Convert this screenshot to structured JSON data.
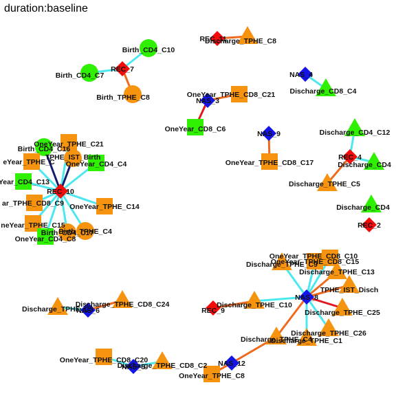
{
  "title": "duration:baseline",
  "colors": {
    "orange": "#f7940f",
    "green": "#2ef000",
    "red": "#f20c0c",
    "blue": "#1414e6",
    "edge_cyan": "#4ce8ef",
    "edge_orange": "#ee6a1e",
    "edge_navy": "#131d6e",
    "edge_red": "#e2181e"
  },
  "nodes": [
    {
      "id": "REC_7",
      "label": "REC_7",
      "shape": "diamond",
      "color": "red"
    },
    {
      "id": "Birth_CD4_C10",
      "label": "Birth_CD4_C10",
      "shape": "circle",
      "color": "green"
    },
    {
      "id": "Birth_CD4_C7",
      "label": "Birth_CD4_C7",
      "shape": "circle",
      "color": "green"
    },
    {
      "id": "Birth_TPHE_C8",
      "label": "Birth_TPHE_C8",
      "shape": "circle",
      "color": "orange"
    },
    {
      "id": "REC_11",
      "label": "REC_11",
      "shape": "diamond",
      "color": "red"
    },
    {
      "id": "Discharge_TPHE_C8",
      "label": "Discharge_TPHE_C8",
      "shape": "triangle",
      "color": "orange"
    },
    {
      "id": "NAS_4",
      "label": "NAS_4",
      "shape": "diamond",
      "color": "blue"
    },
    {
      "id": "Discharge_CD8_C4",
      "label": "Discharge_CD8_C4",
      "shape": "triangle",
      "color": "green"
    },
    {
      "id": "NAS_3",
      "label": "NAS_3",
      "shape": "diamond",
      "color": "blue"
    },
    {
      "id": "OneYear_TPHE_CD8_C21",
      "label": "OneYear_TPHE_CD8_C21",
      "shape": "square",
      "color": "orange"
    },
    {
      "id": "OneYear_CD8_C6",
      "label": "OneYear_CD8_C6",
      "shape": "square",
      "color": "green"
    },
    {
      "id": "NAS_9",
      "label": "NAS_9",
      "shape": "diamond",
      "color": "blue"
    },
    {
      "id": "OneYear_TPHE_CD8_C17",
      "label": "OneYear_TPHE_CD8_C17",
      "shape": "square",
      "color": "orange"
    },
    {
      "id": "REC_4",
      "label": "REC_4",
      "shape": "diamond",
      "color": "red"
    },
    {
      "id": "Discharge_CD4_C12",
      "label": "Discharge_CD4_C12",
      "shape": "triangle",
      "color": "green"
    },
    {
      "id": "Discharge_CD4_b",
      "label": "Discharge_CD4",
      "shape": "triangle",
      "color": "green"
    },
    {
      "id": "Discharge_TPHE_C5",
      "label": "Discharge_TPHE_C5",
      "shape": "triangle",
      "color": "orange"
    },
    {
      "id": "Discharge_CD4_c",
      "label": "Discharge_CD4",
      "shape": "triangle",
      "color": "green"
    },
    {
      "id": "REC_2",
      "label": "REC_2",
      "shape": "diamond",
      "color": "red"
    },
    {
      "id": "REC_10",
      "label": "REC_10",
      "shape": "diamond",
      "color": "red"
    },
    {
      "id": "Birth_CD4_C16",
      "label": "Birth_CD4_C16",
      "shape": "circle",
      "color": "green"
    },
    {
      "id": "OneYear_TPHE_C21",
      "label": "OneYear_TPHE_C21",
      "shape": "square",
      "color": "orange"
    },
    {
      "id": "TPHE_IST_Birth",
      "label": "TPHE_IST_Birth",
      "shape": "circle",
      "color": "orange"
    },
    {
      "id": "OneYear_TPHE_trunc",
      "label": "eYear_TPHE_C",
      "shape": "square",
      "color": "orange"
    },
    {
      "id": "OneYear_CD4_C4",
      "label": "OneYear_CD4_C4",
      "shape": "square",
      "color": "green"
    },
    {
      "id": "OneYear_CD4_C13",
      "label": "eYear_CD4_C13",
      "shape": "square",
      "color": "green"
    },
    {
      "id": "OneYear_TPHE_CD8_C9",
      "label": "ar_TPHE_CD8_C9",
      "shape": "square",
      "color": "orange"
    },
    {
      "id": "OneYear_TPHE_C14",
      "label": "OneYear_TPHE_C14",
      "shape": "square",
      "color": "orange"
    },
    {
      "id": "OneYear_TPHE_C15",
      "label": "neYear_TPHE_C15",
      "shape": "square",
      "color": "orange"
    },
    {
      "id": "Birth_TPHE_C4",
      "label": "Birth_TPHE_C4",
      "shape": "circle",
      "color": "orange"
    },
    {
      "id": "OneYear_CD4_C8",
      "label": "OneYear_CD4_C8",
      "shape": "square",
      "color": "green"
    },
    {
      "id": "Birth_CD4_C17",
      "label": "Birth_CD4_C17",
      "shape": "circle",
      "color": "orange"
    },
    {
      "id": "NAS_8",
      "label": "NAS_8",
      "shape": "diamond",
      "color": "blue"
    },
    {
      "id": "OneYear_TPHE_CD8_C10",
      "label": "OneYear_TPHE_CD8_C10",
      "shape": "square",
      "color": "orange"
    },
    {
      "id": "Discharge_TPHE_C9",
      "label": "Discharge_TPHE_C9",
      "shape": "triangle",
      "color": "orange"
    },
    {
      "id": "OneYear_TPHE_CD8_C15",
      "label": "OneYear_TPHE_CD8_C15",
      "shape": "square",
      "color": "orange"
    },
    {
      "id": "Discharge_TPHE_C13",
      "label": "Discharge_TPHE_C13",
      "shape": "triangle",
      "color": "orange"
    },
    {
      "id": "TPHE_IST_Disch",
      "label": "TPHE_IST_Disch",
      "shape": "triangle",
      "color": "orange"
    },
    {
      "id": "Discharge_TPHE_C25",
      "label": "Discharge_TPHE_C25",
      "shape": "triangle",
      "color": "orange"
    },
    {
      "id": "Discharge_TPHE_C26",
      "label": "Discharge_TPHE_C26",
      "shape": "triangle",
      "color": "orange"
    },
    {
      "id": "Discharge_TPHE_C4",
      "label": "Discharge_TPHE_C4",
      "shape": "triangle",
      "color": "orange"
    },
    {
      "id": "Discharge_TPHE_C1",
      "label": "Discharge_TPHE_C1",
      "shape": "triangle",
      "color": "orange"
    },
    {
      "id": "Discharge_TPHE_C10",
      "label": "Discharge_TPHE_C10",
      "shape": "triangle",
      "color": "orange"
    },
    {
      "id": "REC_9",
      "label": "REC_9",
      "shape": "diamond",
      "color": "red"
    },
    {
      "id": "NAS_6",
      "label": "NAS_6",
      "shape": "diamond",
      "color": "blue"
    },
    {
      "id": "Discharge_TPHE_C3",
      "label": "Discharge_TPHE_C3",
      "shape": "triangle",
      "color": "orange"
    },
    {
      "id": "Discharge_TPHE_CD8_C24",
      "label": "Discharge_TPHE_CD8_C24",
      "shape": "triangle",
      "color": "orange"
    },
    {
      "id": "NAS_12",
      "label": "NAS_12",
      "shape": "diamond",
      "color": "blue"
    },
    {
      "id": "OneYear_TPHE_C8",
      "label": "OneYear_TPHE_C8",
      "shape": "square",
      "color": "orange"
    },
    {
      "id": "Discharge_TPHE_CD8_C2",
      "label": "Discharge_TPHE_CD8_C2",
      "shape": "triangle",
      "color": "orange"
    },
    {
      "id": "NAS_5",
      "label": "NAS_5",
      "shape": "diamond",
      "color": "blue"
    },
    {
      "id": "OneYear_TPHE_CD8_C20",
      "label": "OneYear_TPHE_CD8_C20",
      "shape": "square",
      "color": "orange"
    }
  ],
  "edges": [
    {
      "from": "REC_7",
      "to": "Birth_CD4_C10",
      "color": "edge_cyan"
    },
    {
      "from": "REC_7",
      "to": "Birth_CD4_C7",
      "color": "edge_cyan"
    },
    {
      "from": "REC_7",
      "to": "Birth_TPHE_C8",
      "color": "edge_orange"
    },
    {
      "from": "REC_11",
      "to": "Discharge_TPHE_C8",
      "color": "edge_orange"
    },
    {
      "from": "NAS_4",
      "to": "Discharge_CD8_C4",
      "color": "edge_cyan"
    },
    {
      "from": "NAS_3",
      "to": "OneYear_TPHE_CD8_C21",
      "color": "edge_orange"
    },
    {
      "from": "NAS_3",
      "to": "OneYear_CD8_C6",
      "color": "edge_red"
    },
    {
      "from": "NAS_9",
      "to": "OneYear_TPHE_CD8_C17",
      "color": "edge_orange"
    },
    {
      "from": "REC_4",
      "to": "Discharge_CD4_C12",
      "color": "edge_cyan"
    },
    {
      "from": "REC_4",
      "to": "Discharge_CD4_b",
      "color": "edge_cyan"
    },
    {
      "from": "REC_4",
      "to": "Discharge_TPHE_C5",
      "color": "edge_orange"
    },
    {
      "from": "REC_10",
      "to": "Birth_CD4_C16",
      "color": "edge_navy"
    },
    {
      "from": "REC_10",
      "to": "OneYear_TPHE_C21",
      "color": "edge_cyan"
    },
    {
      "from": "REC_10",
      "to": "TPHE_IST_Birth",
      "color": "edge_navy"
    },
    {
      "from": "REC_10",
      "to": "OneYear_TPHE_trunc",
      "color": "edge_cyan"
    },
    {
      "from": "REC_10",
      "to": "OneYear_CD4_C4",
      "color": "edge_cyan"
    },
    {
      "from": "REC_10",
      "to": "OneYear_CD4_C13",
      "color": "edge_cyan"
    },
    {
      "from": "REC_10",
      "to": "OneYear_TPHE_CD8_C9",
      "color": "edge_cyan"
    },
    {
      "from": "REC_10",
      "to": "OneYear_TPHE_C14",
      "color": "edge_cyan"
    },
    {
      "from": "REC_10",
      "to": "OneYear_TPHE_C15",
      "color": "edge_cyan"
    },
    {
      "from": "REC_10",
      "to": "Birth_TPHE_C4",
      "color": "edge_cyan"
    },
    {
      "from": "REC_10",
      "to": "OneYear_CD4_C8",
      "color": "edge_cyan"
    },
    {
      "from": "REC_10",
      "to": "Birth_CD4_C17",
      "color": "edge_cyan"
    },
    {
      "from": "NAS_8",
      "to": "OneYear_TPHE_CD8_C10",
      "color": "edge_cyan"
    },
    {
      "from": "NAS_8",
      "to": "Discharge_TPHE_C9",
      "color": "edge_cyan"
    },
    {
      "from": "NAS_8",
      "to": "OneYear_TPHE_CD8_C15",
      "color": "edge_cyan"
    },
    {
      "from": "NAS_8",
      "to": "Discharge_TPHE_C13",
      "color": "edge_orange"
    },
    {
      "from": "NAS_8",
      "to": "TPHE_IST_Disch",
      "color": "edge_orange"
    },
    {
      "from": "NAS_8",
      "to": "Discharge_TPHE_C25",
      "color": "edge_red"
    },
    {
      "from": "NAS_8",
      "to": "Discharge_TPHE_C26",
      "color": "edge_cyan"
    },
    {
      "from": "NAS_8",
      "to": "Discharge_TPHE_C4",
      "color": "edge_orange"
    },
    {
      "from": "NAS_8",
      "to": "Discharge_TPHE_C1",
      "color": "edge_cyan"
    },
    {
      "from": "NAS_8",
      "to": "Discharge_TPHE_C10",
      "color": "edge_cyan"
    },
    {
      "from": "REC_9",
      "to": "Discharge_TPHE_C10",
      "color": "edge_orange"
    },
    {
      "from": "NAS_6",
      "to": "Discharge_TPHE_C3",
      "color": "edge_cyan"
    },
    {
      "from": "NAS_6",
      "to": "Discharge_TPHE_CD8_C24",
      "color": "edge_orange"
    },
    {
      "from": "NAS_12",
      "to": "OneYear_TPHE_C8",
      "color": "edge_orange"
    },
    {
      "from": "NAS_12",
      "to": "Discharge_TPHE_C4",
      "color": "edge_orange"
    },
    {
      "from": "NAS_5",
      "to": "Discharge_TPHE_CD8_C2",
      "color": "edge_cyan"
    },
    {
      "from": "NAS_5",
      "to": "OneYear_TPHE_CD8_C20",
      "color": "edge_cyan"
    }
  ]
}
